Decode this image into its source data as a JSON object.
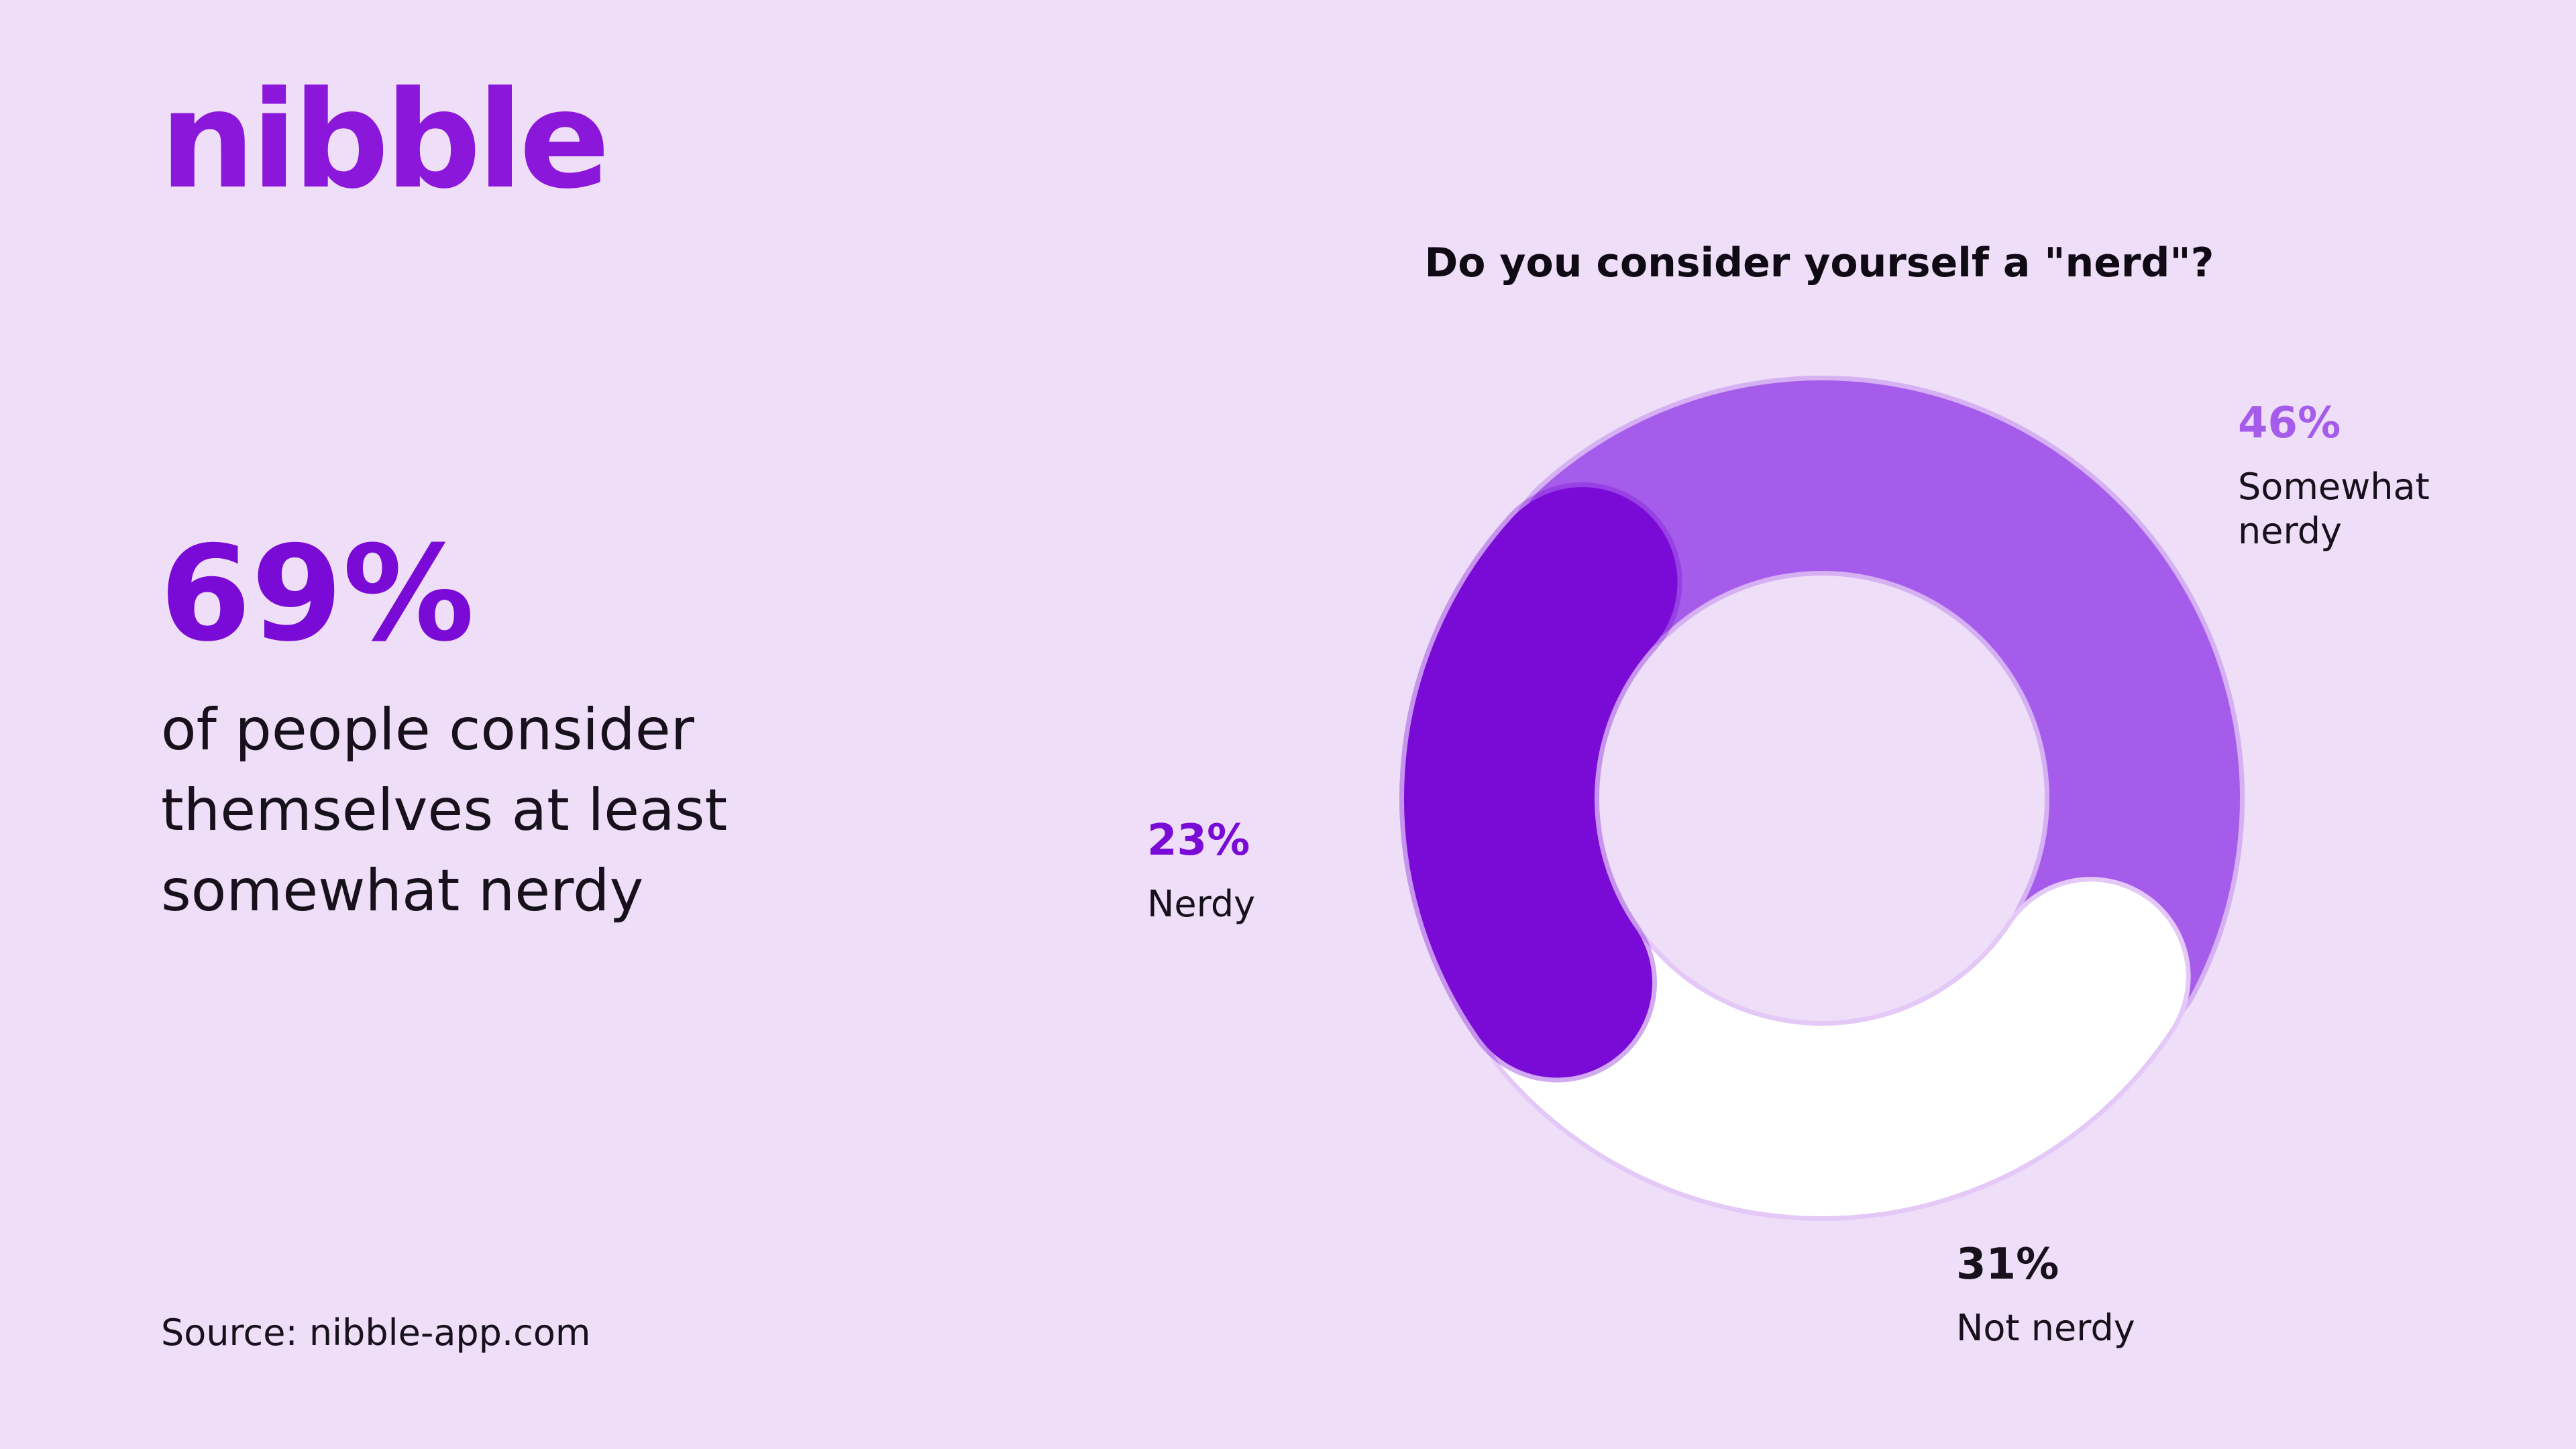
{
  "brand": {
    "logo_text": "nibble",
    "accent_color": "#7A0BD6",
    "background_color": "#EEDEF8"
  },
  "headline": {
    "stat": "69%",
    "text": "of people consider themselves at least somewhat nerdy"
  },
  "source": "Source: nibble-app.com",
  "chart_data": {
    "type": "pie",
    "variant": "donut",
    "title": "Do you consider yourself a \"nerd\"?",
    "categories": [
      "Somewhat nerdy",
      "Not nerdy",
      "Nerdy"
    ],
    "values": [
      46,
      31,
      23
    ],
    "value_labels": [
      "46%",
      "31%",
      "23%"
    ],
    "label_lines": [
      [
        "Somewhat",
        "nerdy"
      ],
      [
        "Not nerdy"
      ],
      [
        "Nerdy"
      ]
    ],
    "colors": [
      "#A65CEB",
      "#FFFFFF",
      "#7A0BD6"
    ],
    "label_colors": [
      "#A65CEB",
      "#17111C",
      "#7A0BD6"
    ],
    "unit": "%",
    "legend": "none",
    "grid": false
  }
}
